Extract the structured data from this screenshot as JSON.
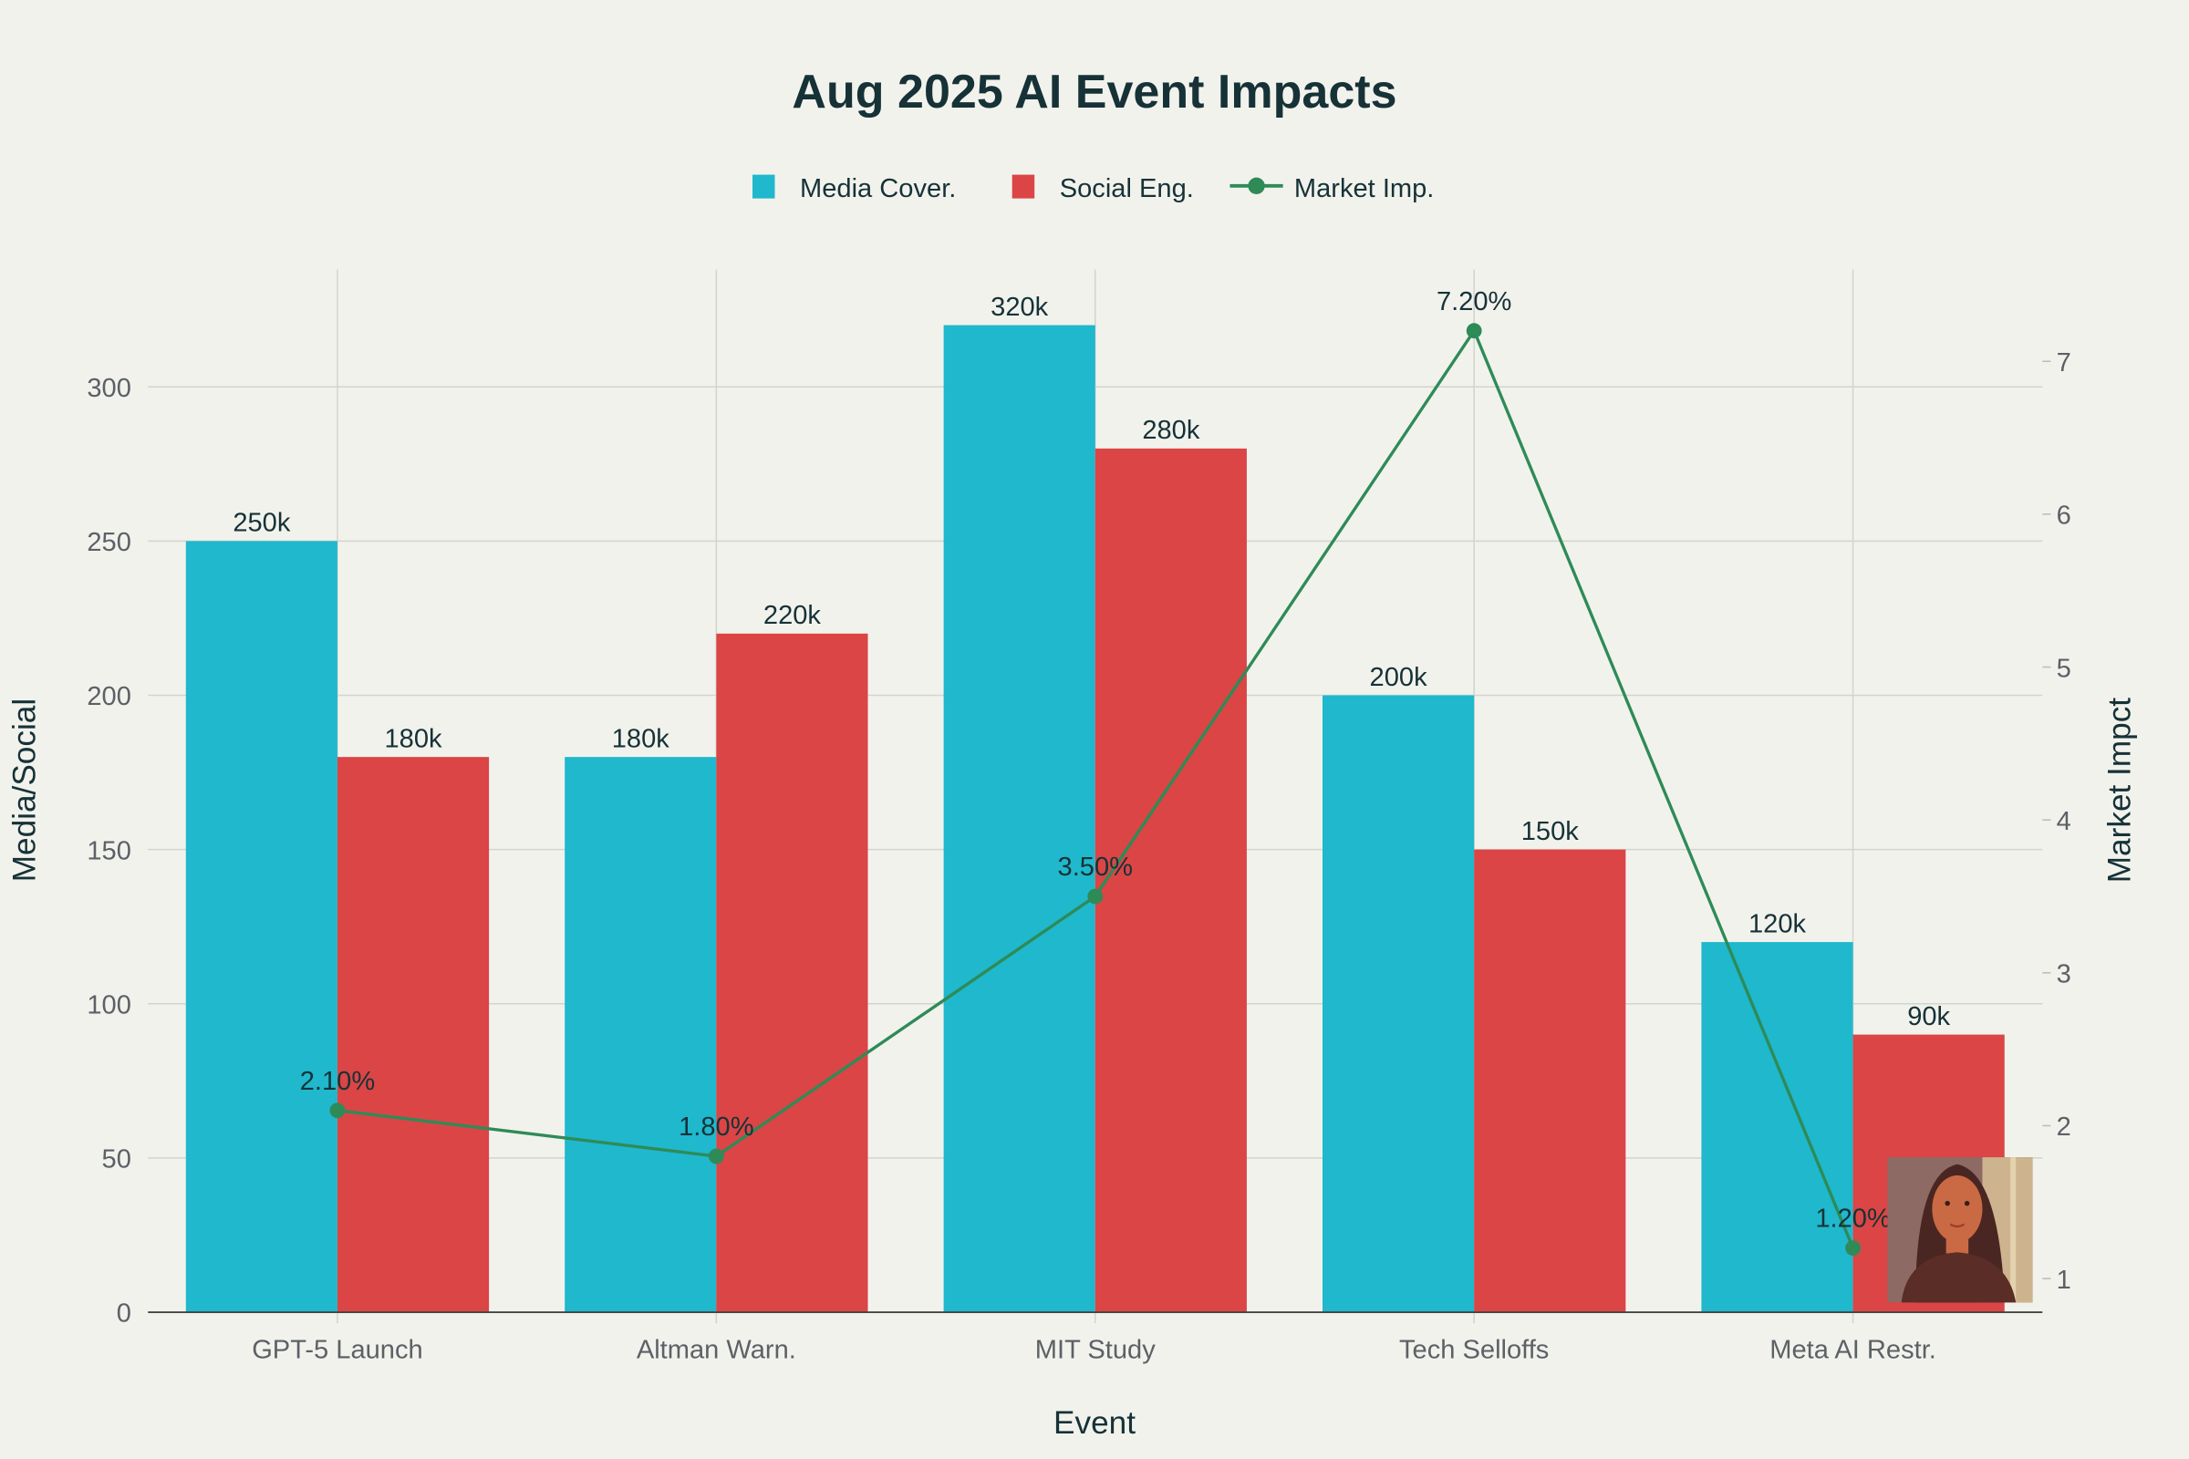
{
  "chart_data": {
    "type": "bar",
    "title": "Aug 2025 AI Event Impacts",
    "xlabel": "Event",
    "ylabel": "Media/Social",
    "y2label": "Market Impct",
    "categories": [
      "GPT-5 Launch",
      "Altman Warn.",
      "MIT Study",
      "Tech Selloffs",
      "Meta AI Restr."
    ],
    "ylim": [
      0,
      338
    ],
    "y2lim": [
      0.78,
      7.6
    ],
    "yticks": [
      "0",
      "50",
      "100",
      "150",
      "200",
      "250",
      "300"
    ],
    "y2ticks": [
      "1",
      "2",
      "3",
      "4",
      "5",
      "6",
      "7"
    ],
    "grid": true,
    "legend_position": "top-center",
    "series": [
      {
        "name": "Media Cover.",
        "type": "bar",
        "axis": "left",
        "color": "#1fb8cd",
        "values": [
          250,
          180,
          320,
          200,
          120
        ],
        "labels": [
          "250k",
          "180k",
          "320k",
          "200k",
          "120k"
        ]
      },
      {
        "name": "Social Eng.",
        "type": "bar",
        "axis": "left",
        "color": "#db4545",
        "values": [
          180,
          220,
          280,
          150,
          90
        ],
        "labels": [
          "180k",
          "220k",
          "280k",
          "150k",
          "90k"
        ]
      },
      {
        "name": "Market Imp.",
        "type": "line",
        "axis": "right",
        "color": "#2e8b57",
        "values": [
          2.1,
          1.8,
          3.5,
          7.2,
          1.2
        ],
        "labels": [
          "2.10%",
          "1.80%",
          "3.50%",
          "7.20%",
          "1.20%"
        ]
      }
    ]
  }
}
